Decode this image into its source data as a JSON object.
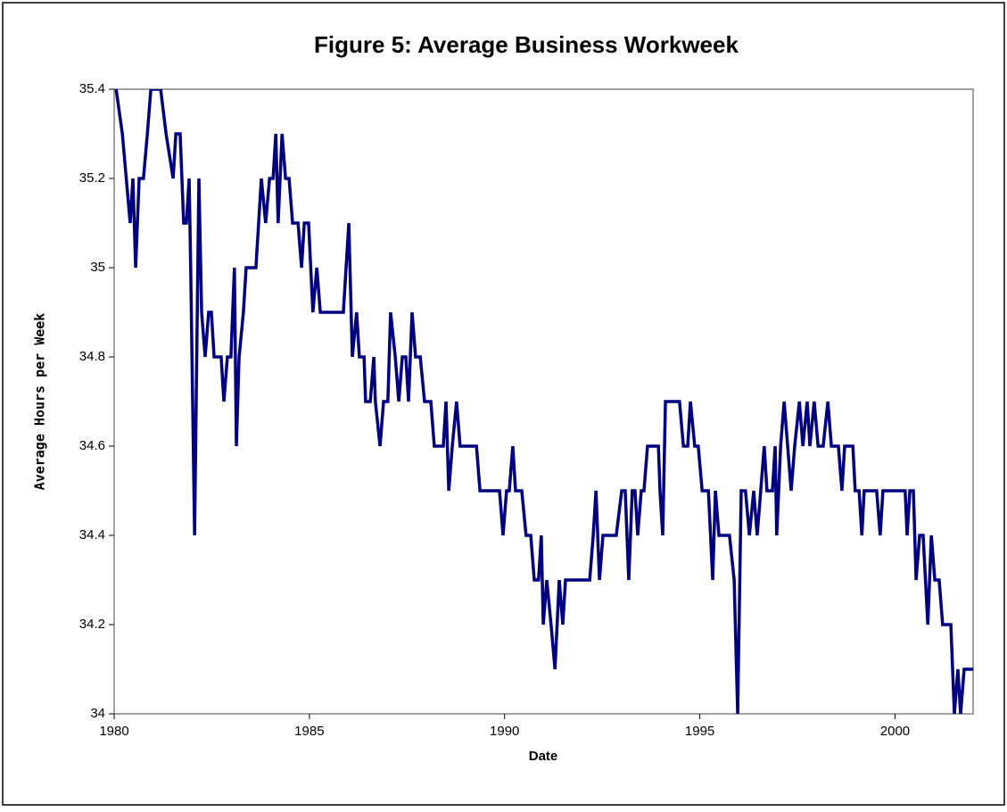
{
  "chart_data": {
    "type": "line",
    "title": "Figure 5: Average Business Workweek",
    "x_label": "Date",
    "y_label": "Average Hours per Week",
    "color": "#000080",
    "xlim": [
      1980,
      2002
    ],
    "xticks": [
      1980,
      1985,
      1990,
      1995,
      2000
    ],
    "ylim": [
      34,
      35.4
    ],
    "yticks": [
      34,
      34.2,
      34.4,
      34.6,
      34.8,
      35,
      35.2,
      35.4
    ],
    "x": [
      1980.05,
      1980.21,
      1980.41,
      1980.48,
      1980.55,
      1980.64,
      1980.75,
      1980.85,
      1980.94,
      1981.19,
      1981.33,
      1981.51,
      1981.58,
      1981.69,
      1981.78,
      1981.85,
      1981.92,
      1981.96,
      1982.06,
      1982.17,
      1982.24,
      1982.33,
      1982.42,
      1982.49,
      1982.56,
      1982.74,
      1982.81,
      1982.9,
      1982.99,
      1983.08,
      1983.13,
      1983.2,
      1983.31,
      1983.38,
      1983.63,
      1983.77,
      1983.88,
      1983.98,
      1984.07,
      1984.14,
      1984.2,
      1984.3,
      1984.39,
      1984.48,
      1984.57,
      1984.71,
      1984.8,
      1984.87,
      1984.98,
      1985.09,
      1985.19,
      1985.28,
      1985.87,
      1986.01,
      1986.1,
      1986.21,
      1986.28,
      1986.4,
      1986.44,
      1986.56,
      1986.65,
      1986.69,
      1986.81,
      1986.9,
      1987.01,
      1987.08,
      1987.2,
      1987.29,
      1987.38,
      1987.47,
      1987.54,
      1987.63,
      1987.72,
      1987.84,
      1987.95,
      1988.11,
      1988.2,
      1988.43,
      1988.5,
      1988.57,
      1988.66,
      1988.77,
      1988.86,
      1989.28,
      1989.37,
      1989.87,
      1989.96,
      1990.05,
      1990.12,
      1990.21,
      1990.28,
      1990.44,
      1990.55,
      1990.67,
      1990.76,
      1990.87,
      1990.94,
      1990.99,
      1991.08,
      1991.19,
      1991.29,
      1991.4,
      1991.49,
      1991.56,
      1992.18,
      1992.27,
      1992.34,
      1992.43,
      1992.52,
      1992.86,
      1993.0,
      1993.09,
      1993.18,
      1993.27,
      1993.34,
      1993.41,
      1993.5,
      1993.57,
      1993.66,
      1993.94,
      1993.98,
      1994.05,
      1994.12,
      1994.48,
      1994.58,
      1994.69,
      1994.76,
      1994.87,
      1994.96,
      1995.06,
      1995.22,
      1995.33,
      1995.4,
      1995.49,
      1995.76,
      1995.88,
      1995.97,
      1996.06,
      1996.17,
      1996.27,
      1996.38,
      1996.47,
      1996.56,
      1996.65,
      1996.72,
      1996.86,
      1996.93,
      1996.97,
      1997.07,
      1997.16,
      1997.25,
      1997.34,
      1997.43,
      1997.55,
      1997.64,
      1997.75,
      1997.82,
      1997.93,
      1998.03,
      1998.16,
      1998.28,
      1998.37,
      1998.55,
      1998.64,
      1998.71,
      1998.92,
      1998.98,
      1999.08,
      1999.15,
      1999.21,
      1999.53,
      1999.62,
      1999.69,
      2000.26,
      2000.31,
      2000.38,
      2000.47,
      2000.54,
      2000.63,
      2000.72,
      2000.84,
      2000.93,
      2001.02,
      2001.13,
      2001.22,
      2001.43,
      2001.52,
      2001.61,
      2001.68,
      2001.77,
      2002.0
    ],
    "values": [
      35.4,
      35.3,
      35.1,
      35.2,
      35.0,
      35.2,
      35.2,
      35.3,
      35.4,
      35.4,
      35.3,
      35.2,
      35.3,
      35.3,
      35.1,
      35.1,
      35.2,
      35.0,
      34.4,
      35.2,
      34.9,
      34.8,
      34.9,
      34.9,
      34.8,
      34.8,
      34.7,
      34.8,
      34.8,
      35.0,
      34.6,
      34.8,
      34.9,
      35.0,
      35.0,
      35.2,
      35.1,
      35.2,
      35.2,
      35.3,
      35.1,
      35.3,
      35.2,
      35.2,
      35.1,
      35.1,
      35.0,
      35.1,
      35.1,
      34.9,
      35.0,
      34.9,
      34.9,
      35.1,
      34.8,
      34.9,
      34.8,
      34.8,
      34.7,
      34.7,
      34.8,
      34.7,
      34.6,
      34.7,
      34.7,
      34.9,
      34.8,
      34.7,
      34.8,
      34.8,
      34.7,
      34.9,
      34.8,
      34.8,
      34.7,
      34.7,
      34.6,
      34.6,
      34.7,
      34.5,
      34.6,
      34.7,
      34.6,
      34.6,
      34.5,
      34.5,
      34.4,
      34.5,
      34.5,
      34.6,
      34.5,
      34.5,
      34.4,
      34.4,
      34.3,
      34.3,
      34.4,
      34.2,
      34.3,
      34.2,
      34.1,
      34.3,
      34.2,
      34.3,
      34.3,
      34.4,
      34.5,
      34.3,
      34.4,
      34.4,
      34.5,
      34.5,
      34.3,
      34.5,
      34.5,
      34.4,
      34.5,
      34.5,
      34.6,
      34.6,
      34.5,
      34.4,
      34.7,
      34.7,
      34.6,
      34.6,
      34.7,
      34.6,
      34.6,
      34.5,
      34.5,
      34.3,
      34.5,
      34.4,
      34.4,
      34.3,
      34.0,
      34.5,
      34.5,
      34.4,
      34.5,
      34.4,
      34.5,
      34.6,
      34.5,
      34.5,
      34.6,
      34.4,
      34.6,
      34.7,
      34.6,
      34.5,
      34.6,
      34.7,
      34.6,
      34.7,
      34.6,
      34.7,
      34.6,
      34.6,
      34.7,
      34.6,
      34.6,
      34.5,
      34.6,
      34.6,
      34.5,
      34.5,
      34.4,
      34.5,
      34.5,
      34.4,
      34.5,
      34.5,
      34.4,
      34.5,
      34.5,
      34.3,
      34.4,
      34.4,
      34.2,
      34.4,
      34.3,
      34.3,
      34.2,
      34.2,
      34.0,
      34.1,
      34.0,
      34.1,
      34.1
    ]
  }
}
